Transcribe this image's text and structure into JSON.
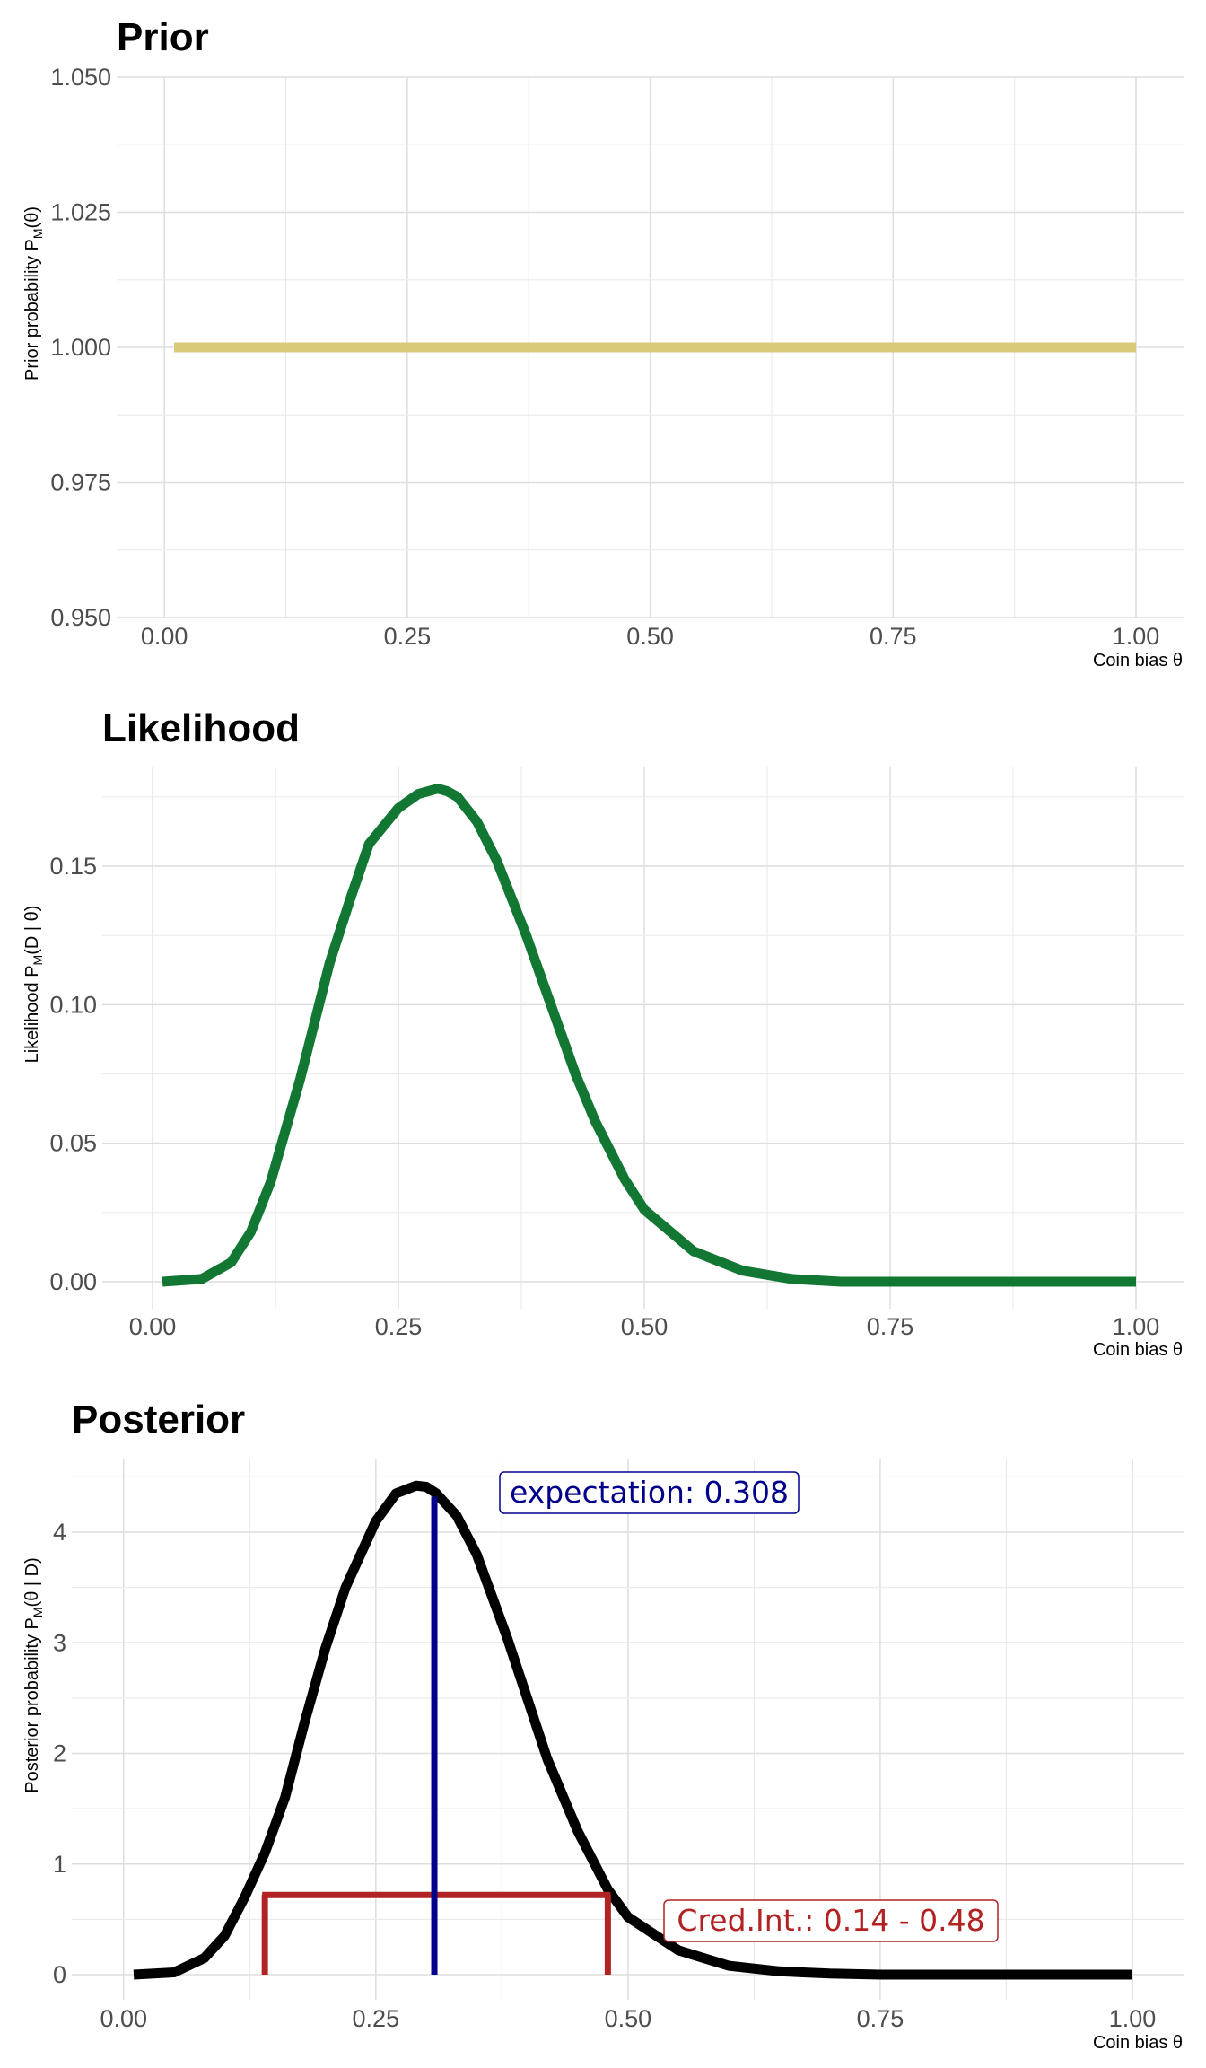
{
  "chart_data": [
    {
      "type": "line",
      "title": "Prior",
      "xlabel": "Coin bias θ",
      "ylabel": "Prior probability P_M(θ)",
      "ylabel_parts": {
        "pre": "Prior probability P",
        "sub": "M",
        "post": "(θ)"
      },
      "xlim": [
        0,
        1
      ],
      "ylim": [
        0.95,
        1.05
      ],
      "x_ticks": [
        0.0,
        0.25,
        0.5,
        0.75,
        1.0
      ],
      "x_tick_labels": [
        "0.00",
        "0.25",
        "0.50",
        "0.75",
        "1.00"
      ],
      "y_ticks": [
        0.95,
        0.975,
        1.0,
        1.025,
        1.05
      ],
      "y_tick_labels": [
        "0.950",
        "0.975",
        "1.000",
        "1.025",
        "1.050"
      ],
      "grid": true,
      "series": [
        {
          "color": "#d9c97a",
          "x": [
            0.01,
            1.0
          ],
          "y": [
            1.0,
            1.0
          ]
        }
      ]
    },
    {
      "type": "line",
      "title": "Likelihood",
      "xlabel": "Coin bias θ",
      "ylabel": "Likelihood P_M(D | θ)",
      "ylabel_parts": {
        "pre": "Likelihood P",
        "sub": "M",
        "post": "(D | θ)"
      },
      "xlim": [
        0,
        1
      ],
      "ylim": [
        0,
        0.18
      ],
      "x_ticks": [
        0.0,
        0.25,
        0.5,
        0.75,
        1.0
      ],
      "x_tick_labels": [
        "0.00",
        "0.25",
        "0.50",
        "0.75",
        "1.00"
      ],
      "y_ticks": [
        0.0,
        0.05,
        0.1,
        0.15
      ],
      "y_tick_labels": [
        "0.00",
        "0.05",
        "0.10",
        "0.15"
      ],
      "grid": true,
      "series": [
        {
          "color": "#117733",
          "x": [
            0.01,
            0.05,
            0.08,
            0.1,
            0.12,
            0.15,
            0.18,
            0.2,
            0.22,
            0.25,
            0.27,
            0.29,
            0.3,
            0.31,
            0.33,
            0.35,
            0.38,
            0.4,
            0.43,
            0.45,
            0.48,
            0.5,
            0.55,
            0.6,
            0.65,
            0.7,
            0.75,
            0.8,
            0.9,
            1.0
          ],
          "y": [
            0.0,
            0.001,
            0.007,
            0.018,
            0.036,
            0.073,
            0.115,
            0.137,
            0.158,
            0.171,
            0.176,
            0.178,
            0.177,
            0.175,
            0.166,
            0.152,
            0.125,
            0.105,
            0.075,
            0.058,
            0.037,
            0.026,
            0.011,
            0.004,
            0.001,
            0.0,
            0.0,
            0.0,
            0.0,
            0.0
          ]
        }
      ]
    },
    {
      "type": "line",
      "title": "Posterior",
      "xlabel": "Coin bias θ",
      "ylabel": "Posterior probability P_M(θ | D)",
      "ylabel_parts": {
        "pre": "Posterior probability P",
        "sub": "M",
        "post": "(θ | D)"
      },
      "xlim": [
        0,
        1
      ],
      "ylim": [
        0,
        4.5
      ],
      "x_ticks": [
        0.0,
        0.25,
        0.5,
        0.75,
        1.0
      ],
      "x_tick_labels": [
        "0.00",
        "0.25",
        "0.50",
        "0.75",
        "1.00"
      ],
      "y_ticks": [
        0,
        1,
        2,
        3,
        4
      ],
      "y_tick_labels": [
        "0",
        "1",
        "2",
        "3",
        "4"
      ],
      "grid": true,
      "series": [
        {
          "color": "#000000",
          "x": [
            0.01,
            0.05,
            0.08,
            0.1,
            0.12,
            0.14,
            0.16,
            0.18,
            0.2,
            0.22,
            0.25,
            0.27,
            0.29,
            0.3,
            0.31,
            0.33,
            0.35,
            0.38,
            0.4,
            0.42,
            0.45,
            0.48,
            0.5,
            0.55,
            0.6,
            0.65,
            0.7,
            0.75,
            0.8,
            0.9,
            1.0
          ],
          "y": [
            0.0,
            0.02,
            0.15,
            0.35,
            0.7,
            1.1,
            1.6,
            2.3,
            2.95,
            3.5,
            4.1,
            4.35,
            4.42,
            4.41,
            4.35,
            4.15,
            3.8,
            3.05,
            2.5,
            1.95,
            1.3,
            0.77,
            0.52,
            0.22,
            0.08,
            0.03,
            0.01,
            0.0,
            0.0,
            0.0,
            0.0
          ]
        }
      ],
      "expectation": {
        "value": 0.308,
        "label": "expectation: 0.308",
        "color": "#00008b"
      },
      "credible_interval": {
        "lower": 0.14,
        "upper": 0.48,
        "height": 0.72,
        "label": "Cred.Int.: 0.14 - 0.48",
        "color": "#b22222"
      }
    }
  ]
}
